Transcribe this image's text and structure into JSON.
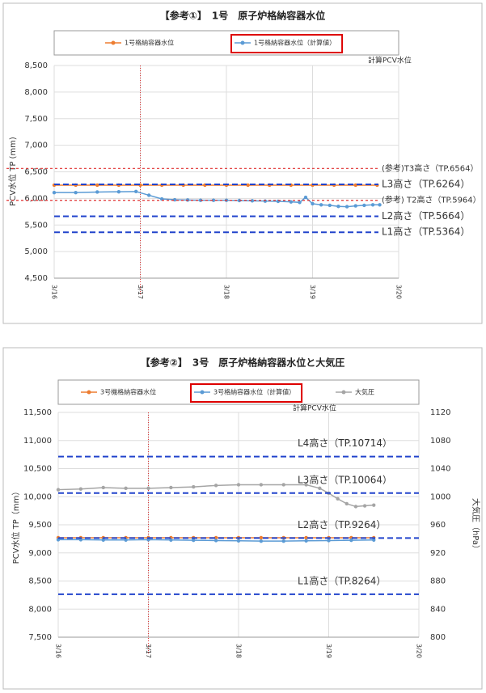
{
  "chart_data": [
    {
      "type": "line",
      "title": "【参考①】　1号　原子炉格納容器水位",
      "y_label": "PCV水位 TP (mm)",
      "annotation": "計算PCV水位",
      "annotation_color": "#e03030",
      "ylim": [
        4500,
        8500
      ],
      "yticks": [
        {
          "value": 4500,
          "label": "4,500"
        },
        {
          "value": 5000,
          "label": "5,000"
        },
        {
          "value": 5500,
          "label": "5,500"
        },
        {
          "value": 6000,
          "label": "6,000"
        },
        {
          "value": 6500,
          "label": "6,500"
        },
        {
          "value": 7000,
          "label": "7,000"
        },
        {
          "value": 7500,
          "label": "7,500"
        },
        {
          "value": 8000,
          "label": "8,000"
        },
        {
          "value": 8500,
          "label": "8,500"
        }
      ],
      "xlim": [
        0,
        4
      ],
      "xticks": [
        {
          "value": 0,
          "label": "3/16"
        },
        {
          "value": 1,
          "label": "3/17"
        },
        {
          "value": 2,
          "label": "3/18"
        },
        {
          "value": 3,
          "label": "3/19"
        },
        {
          "value": 4,
          "label": "3/20"
        }
      ],
      "vline": 1,
      "vline_color": "#e03030",
      "grid": true,
      "series": [
        {
          "name": "1号格納容器水位",
          "color": "#ed7d31",
          "x": [
            0,
            0.25,
            0.5,
            0.75,
            1,
            1.25,
            1.5,
            1.75,
            2,
            2.25,
            2.5,
            2.75,
            3,
            3.25,
            3.5,
            3.75
          ],
          "values": [
            6250,
            6250,
            6250,
            6250,
            6250,
            6250,
            6250,
            6250,
            6250,
            6250,
            6250,
            6250,
            6250,
            6250,
            6250,
            6250
          ]
        },
        {
          "name": "1号格納容器水位（計算値）",
          "color": "#5b9bd5",
          "highlighted": true,
          "x": [
            0,
            0.25,
            0.5,
            0.75,
            0.95,
            1.1,
            1.25,
            1.4,
            1.55,
            1.7,
            1.85,
            2.0,
            2.15,
            2.3,
            2.45,
            2.6,
            2.75,
            2.85,
            2.92,
            3.0,
            3.1,
            3.2,
            3.3,
            3.4,
            3.5,
            3.6,
            3.7,
            3.78
          ],
          "values": [
            6110,
            6110,
            6120,
            6125,
            6130,
            6060,
            5990,
            5975,
            5970,
            5965,
            5965,
            5965,
            5960,
            5955,
            5950,
            5945,
            5935,
            5925,
            6020,
            5900,
            5880,
            5870,
            5850,
            5845,
            5860,
            5870,
            5880,
            5880
          ]
        }
      ],
      "reference_lines": [
        {
          "label": "(参考)T3高さ（TP.6564）",
          "value": 6564,
          "color": "#e03030"
        },
        {
          "label": "L3高さ（TP.6264）",
          "value": 6264,
          "color": "#2244cc"
        },
        {
          "label": "(参考) T2高さ（TP.5964）",
          "value": 5964,
          "color": "#e03030"
        },
        {
          "label": "L2高さ（TP.5664）",
          "value": 5664,
          "color": "#2244cc"
        },
        {
          "label": "L1高さ（TP.5364）",
          "value": 5364,
          "color": "#2244cc"
        }
      ]
    },
    {
      "type": "line",
      "title": "【参考②】　3号　原子炉格納容器水位と大気圧",
      "y_label": "PCV水位 TP（mm）",
      "y2_label": "大気圧（hPa）",
      "annotation": "計算PCV水位",
      "annotation_color": "#e03030",
      "ylim": [
        7500,
        11500
      ],
      "yticks": [
        {
          "value": 7500,
          "label": "7,500"
        },
        {
          "value": 8000,
          "label": "8,000"
        },
        {
          "value": 8500,
          "label": "8,500"
        },
        {
          "value": 9000,
          "label": "9,000"
        },
        {
          "value": 9500,
          "label": "9,500"
        },
        {
          "value": 10000,
          "label": "10,000"
        },
        {
          "value": 10500,
          "label": "10,500"
        },
        {
          "value": 11000,
          "label": "11,000"
        },
        {
          "value": 11500,
          "label": "11,500"
        }
      ],
      "y2lim": [
        800,
        1120
      ],
      "y2ticks": [
        800,
        840,
        880,
        920,
        960,
        1000,
        1040,
        1080,
        1120
      ],
      "xlim": [
        0,
        4
      ],
      "xticks": [
        {
          "value": 0,
          "label": "3/16"
        },
        {
          "value": 1,
          "label": "3/17"
        },
        {
          "value": 2,
          "label": "3/18"
        },
        {
          "value": 3,
          "label": "3/19"
        },
        {
          "value": 4,
          "label": "3/20"
        }
      ],
      "vline": 1,
      "vline_color": "#e03030",
      "grid": true,
      "series": [
        {
          "name": "3号機格納容器水位",
          "color": "#ed7d31",
          "x": [
            0,
            0.25,
            0.5,
            0.75,
            1,
            1.25,
            1.5,
            1.75,
            2,
            2.25,
            2.5,
            2.75,
            3,
            3.25,
            3.5
          ],
          "values": [
            9270,
            9270,
            9270,
            9270,
            9270,
            9270,
            9270,
            9270,
            9270,
            9270,
            9270,
            9270,
            9270,
            9270,
            9270
          ]
        },
        {
          "name": "3号格納容器水位（計算値）",
          "color": "#5b9bd5",
          "highlighted": true,
          "x": [
            0,
            0.25,
            0.5,
            0.75,
            1,
            1.25,
            1.5,
            1.75,
            2,
            2.25,
            2.5,
            2.75,
            3,
            3.25,
            3.5
          ],
          "values": [
            9235,
            9235,
            9230,
            9230,
            9235,
            9230,
            9225,
            9220,
            9215,
            9210,
            9210,
            9215,
            9220,
            9225,
            9230
          ]
        },
        {
          "name": "大気圧",
          "color": "#a5a5a5",
          "axis": "y2",
          "x": [
            0,
            0.25,
            0.5,
            0.75,
            1,
            1.25,
            1.5,
            1.75,
            2,
            2.25,
            2.5,
            2.75,
            2.9,
            3.0,
            3.1,
            3.2,
            3.3,
            3.4,
            3.5
          ],
          "values": [
            1010,
            1011,
            1013,
            1012,
            1012,
            1013,
            1014,
            1016,
            1017,
            1017,
            1017,
            1017,
            1012,
            1005,
            997,
            990,
            986,
            987,
            988
          ]
        }
      ],
      "reference_lines": [
        {
          "label": "L4高さ（TP.10714）",
          "value": 10714,
          "color": "#2244cc"
        },
        {
          "label": "L3高さ（TP.10064）",
          "value": 10064,
          "color": "#2244cc"
        },
        {
          "label": "L2高さ（TP.9264）",
          "value": 9264,
          "color": "#2244cc"
        },
        {
          "label": "L1高さ（TP.8264）",
          "value": 8264,
          "color": "#2244cc"
        }
      ]
    }
  ]
}
